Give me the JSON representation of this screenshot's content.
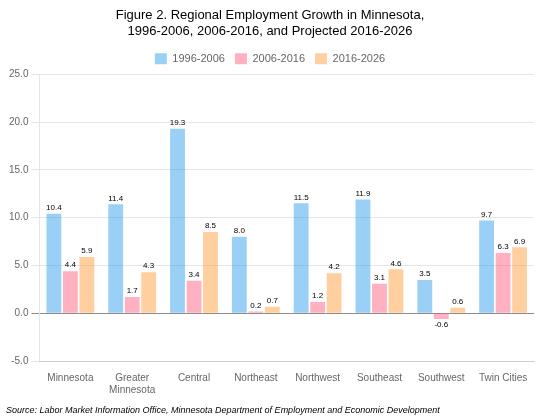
{
  "chart_data": {
    "type": "bar",
    "title": "Figure 2. Regional Employment Growth in Minnesota,\n1996-2006, 2006-2016, and Projected 2016-2026",
    "categories": [
      "Minnesota",
      "Greater\nMinnesota",
      "Central",
      "Northeast",
      "Northwest",
      "Southeast",
      "Southwest",
      "Twin Cities"
    ],
    "series": [
      {
        "name": "1996-2006",
        "values": [
          10.4,
          11.4,
          19.3,
          8.0,
          11.5,
          11.9,
          3.5,
          9.7
        ],
        "value_labels": [
          "10.4",
          "11.4",
          "19.3",
          "8.0",
          "11.5",
          "11.9",
          "3.5",
          "9.7"
        ]
      },
      {
        "name": "2006-2016",
        "values": [
          4.4,
          1.7,
          3.4,
          0.2,
          1.2,
          3.1,
          -0.6,
          6.3
        ]
      },
      {
        "name": "2016-2026",
        "values": [
          5.9,
          4.3,
          8.5,
          0.7,
          4.2,
          4.6,
          0.6,
          6.9
        ]
      }
    ],
    "ylim": [
      -5.0,
      25.0
    ],
    "yticks": [
      {
        "value": -5,
        "label": "-5.0"
      },
      {
        "value": 0,
        "label": "0.0"
      },
      {
        "value": 5,
        "label": "5.0"
      },
      {
        "value": 10,
        "label": "10.0"
      },
      {
        "value": 15,
        "label": "15.0"
      },
      {
        "value": 20,
        "label": "20.0"
      },
      {
        "value": 25,
        "label": "25.0"
      }
    ],
    "grid": true,
    "legend": "top",
    "data_labels": true,
    "annotations": [
      "Source: Labor Market Information Office, Minnesota Department of Employment and Economic Development"
    ]
  }
}
